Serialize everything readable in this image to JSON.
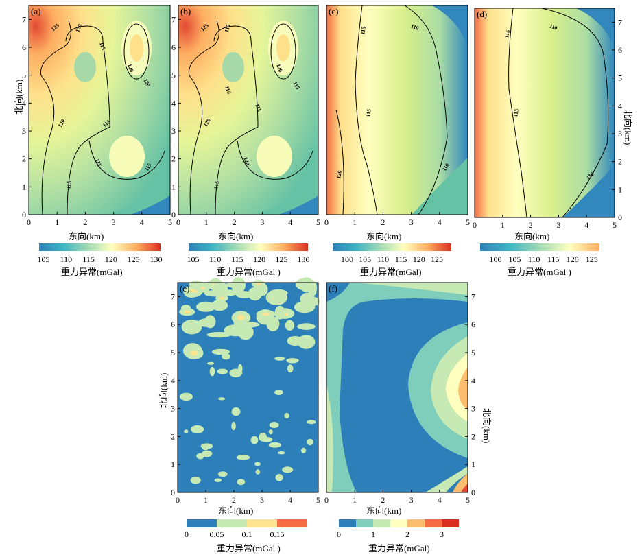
{
  "chart_data": [
    {
      "id": "a",
      "type": "heatmap",
      "panel_label": "(a)",
      "xlabel": "东向(km)",
      "ylabel": "北向(km)",
      "xlim": [
        0,
        5
      ],
      "ylim": [
        0,
        7.5
      ],
      "xticks": [
        "0",
        "1",
        "2",
        "3",
        "4",
        "5"
      ],
      "yticks": [
        "0",
        "1",
        "2",
        "3",
        "4",
        "5",
        "6",
        "7"
      ],
      "contour_labels": [
        "125",
        "120",
        "115",
        "120",
        "120",
        "115",
        "115",
        "120",
        "115",
        "115"
      ],
      "colorbar": {
        "label": "重力异常(mGal)",
        "ticks": [
          "105",
          "110",
          "115",
          "120",
          "125",
          "130"
        ],
        "range": [
          104,
          131
        ]
      }
    },
    {
      "id": "b",
      "type": "heatmap",
      "panel_label": "(b)",
      "xlabel": "东向(km)",
      "ylabel": "",
      "xlim": [
        0,
        5
      ],
      "ylim": [
        0,
        7.5
      ],
      "xticks": [
        "0",
        "1",
        "2",
        "3",
        "4",
        "5"
      ],
      "yticks": [
        "0",
        "1",
        "2",
        "3",
        "4",
        "5",
        "6",
        "7"
      ],
      "contour_labels": [
        "125",
        "115",
        "120",
        "120",
        "115",
        "115",
        "120",
        "115",
        "115"
      ],
      "colorbar": {
        "label": "重力异常(mGal )",
        "ticks": [
          "105",
          "110",
          "115",
          "120",
          "125",
          "130"
        ],
        "range": [
          104,
          131
        ]
      }
    },
    {
      "id": "c",
      "type": "heatmap",
      "panel_label": "(c)",
      "xlabel": "东向(km)",
      "ylabel": "",
      "xlim": [
        0,
        5
      ],
      "ylim": [
        0,
        7.5
      ],
      "xticks": [
        "0",
        "1",
        "2",
        "3",
        "4",
        "5"
      ],
      "yticks": [],
      "contour_labels": [
        "115",
        "110",
        "115",
        "120",
        "110"
      ],
      "colorbar": {
        "label": "重力异常(mGal)",
        "ticks": [
          "100",
          "105",
          "110",
          "115",
          "120",
          "125"
        ],
        "range": [
          96,
          129
        ]
      }
    },
    {
      "id": "d",
      "type": "heatmap",
      "panel_label": "(d)",
      "xlabel": "东向(km)",
      "ylabel": "北向(km)",
      "xlim": [
        0,
        5
      ],
      "ylim": [
        0,
        7.5
      ],
      "xticks": [
        "0",
        "1",
        "2",
        "3",
        "4",
        "5"
      ],
      "yticks": [
        "0",
        "1",
        "2",
        "3",
        "4",
        "5",
        "6",
        "7"
      ],
      "contour_labels": [
        "115",
        "110",
        "115",
        "110"
      ],
      "colorbar": {
        "label": "重力异常(mGal )",
        "ticks": [
          "100",
          "105",
          "110",
          "115",
          "120",
          "125"
        ],
        "range": [
          96,
          127
        ]
      }
    },
    {
      "id": "e",
      "type": "heatmap",
      "panel_label": "(e)",
      "xlabel": "东向(km)",
      "ylabel": "北向(km)",
      "xlim": [
        0,
        5
      ],
      "ylim": [
        0,
        7.5
      ],
      "xticks": [
        "0",
        "1",
        "2",
        "3",
        "4",
        "5"
      ],
      "yticks": [
        "0",
        "1",
        "2",
        "3",
        "4",
        "5",
        "6",
        "7"
      ],
      "contour_labels": [],
      "colorbar": {
        "label": "重力异常(mGal )",
        "ticks": [
          "0",
          "0.05",
          "0.1",
          "0.15"
        ],
        "range": [
          0,
          0.2
        ]
      }
    },
    {
      "id": "f",
      "type": "heatmap",
      "panel_label": "(f)",
      "xlabel": "东向(km)",
      "ylabel": "北向(km)",
      "xlim": [
        0,
        5
      ],
      "ylim": [
        0,
        7.5
      ],
      "xticks": [
        "0",
        "1",
        "2",
        "3",
        "4",
        "5"
      ],
      "yticks": [
        "0",
        "1",
        "2",
        "3",
        "4",
        "5",
        "6",
        "7"
      ],
      "contour_labels": [],
      "colorbar": {
        "label": "重力异常(mGal)",
        "ticks": [
          "0",
          "1",
          "2",
          "3"
        ],
        "range": [
          0,
          3.5
        ]
      }
    }
  ]
}
